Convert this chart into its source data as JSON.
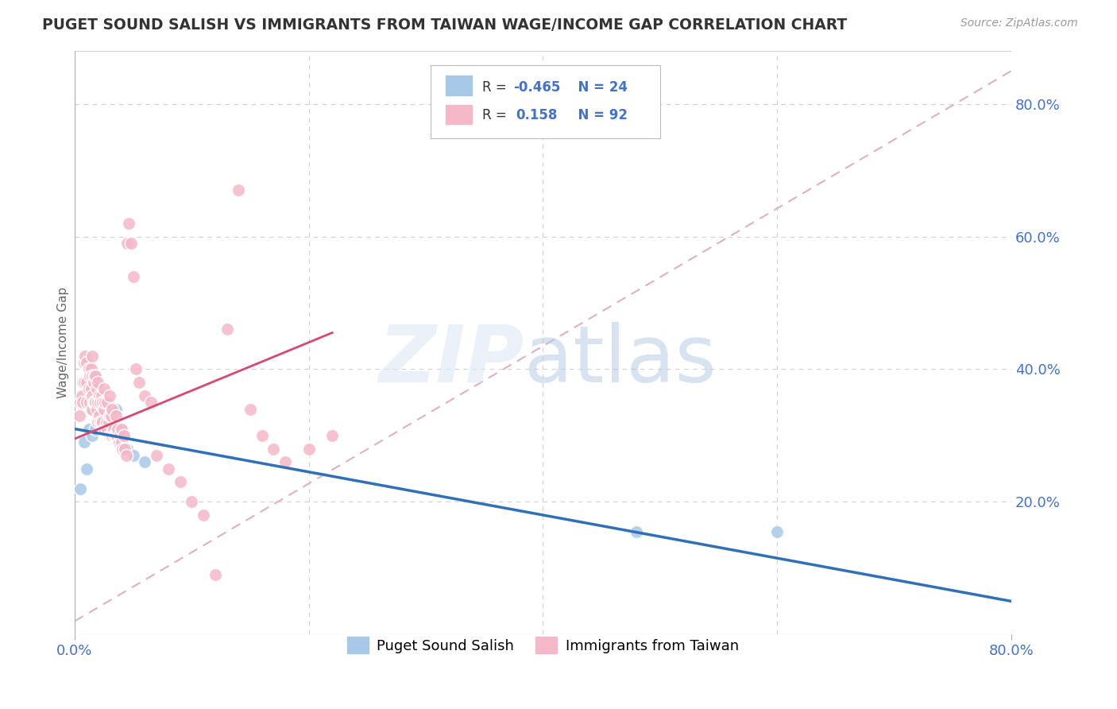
{
  "title": "PUGET SOUND SALISH VS IMMIGRANTS FROM TAIWAN WAGE/INCOME GAP CORRELATION CHART",
  "source": "Source: ZipAtlas.com",
  "ylabel": "Wage/Income Gap",
  "xlim": [
    0.0,
    0.8
  ],
  "ylim": [
    0.0,
    0.88
  ],
  "watermark_zip": "ZIP",
  "watermark_atlas": "atlas",
  "legend_R_blue": "-0.465",
  "legend_N_blue": "24",
  "legend_R_pink": "0.158",
  "legend_N_pink": "92",
  "blue_color": "#a8c8e8",
  "pink_color": "#f4b8c8",
  "blue_line_color": "#3070b8",
  "pink_line_color": "#d84870",
  "diagonal_color": "#e0b0c0",
  "background_color": "#ffffff",
  "tick_color": "#4472c4",
  "grid_color": "#d0d0d0",
  "blue_scatter_x": [
    0.005,
    0.008,
    0.01,
    0.012,
    0.015,
    0.015,
    0.018,
    0.02,
    0.022,
    0.025,
    0.025,
    0.028,
    0.03,
    0.03,
    0.032,
    0.035,
    0.038,
    0.04,
    0.042,
    0.045,
    0.05,
    0.06,
    0.48,
    0.6
  ],
  "blue_scatter_y": [
    0.22,
    0.29,
    0.25,
    0.31,
    0.3,
    0.34,
    0.31,
    0.33,
    0.345,
    0.32,
    0.34,
    0.33,
    0.315,
    0.34,
    0.33,
    0.34,
    0.31,
    0.31,
    0.3,
    0.28,
    0.27,
    0.26,
    0.155,
    0.155
  ],
  "pink_scatter_x": [
    0.004,
    0.005,
    0.006,
    0.007,
    0.007,
    0.008,
    0.008,
    0.009,
    0.01,
    0.01,
    0.01,
    0.012,
    0.012,
    0.013,
    0.013,
    0.014,
    0.014,
    0.015,
    0.015,
    0.015,
    0.015,
    0.016,
    0.016,
    0.017,
    0.017,
    0.018,
    0.018,
    0.019,
    0.019,
    0.02,
    0.02,
    0.02,
    0.021,
    0.021,
    0.022,
    0.022,
    0.023,
    0.023,
    0.024,
    0.024,
    0.025,
    0.025,
    0.025,
    0.026,
    0.026,
    0.027,
    0.028,
    0.028,
    0.029,
    0.03,
    0.03,
    0.03,
    0.031,
    0.031,
    0.032,
    0.032,
    0.033,
    0.034,
    0.035,
    0.035,
    0.036,
    0.037,
    0.038,
    0.039,
    0.04,
    0.04,
    0.041,
    0.042,
    0.043,
    0.044,
    0.045,
    0.046,
    0.048,
    0.05,
    0.052,
    0.055,
    0.06,
    0.065,
    0.07,
    0.08,
    0.09,
    0.1,
    0.11,
    0.12,
    0.13,
    0.14,
    0.15,
    0.16,
    0.17,
    0.18,
    0.2,
    0.22
  ],
  "pink_scatter_y": [
    0.33,
    0.35,
    0.36,
    0.38,
    0.35,
    0.41,
    0.38,
    0.42,
    0.35,
    0.38,
    0.41,
    0.37,
    0.4,
    0.35,
    0.39,
    0.37,
    0.4,
    0.34,
    0.36,
    0.39,
    0.42,
    0.35,
    0.38,
    0.35,
    0.39,
    0.35,
    0.39,
    0.34,
    0.37,
    0.32,
    0.35,
    0.38,
    0.33,
    0.36,
    0.32,
    0.35,
    0.32,
    0.36,
    0.32,
    0.35,
    0.31,
    0.34,
    0.37,
    0.31,
    0.35,
    0.32,
    0.31,
    0.35,
    0.32,
    0.3,
    0.33,
    0.36,
    0.3,
    0.33,
    0.3,
    0.34,
    0.31,
    0.3,
    0.3,
    0.33,
    0.3,
    0.31,
    0.29,
    0.3,
    0.29,
    0.31,
    0.28,
    0.3,
    0.28,
    0.27,
    0.59,
    0.62,
    0.59,
    0.54,
    0.4,
    0.38,
    0.36,
    0.35,
    0.27,
    0.25,
    0.23,
    0.2,
    0.18,
    0.09,
    0.46,
    0.67,
    0.34,
    0.3,
    0.28,
    0.26,
    0.28,
    0.3
  ]
}
